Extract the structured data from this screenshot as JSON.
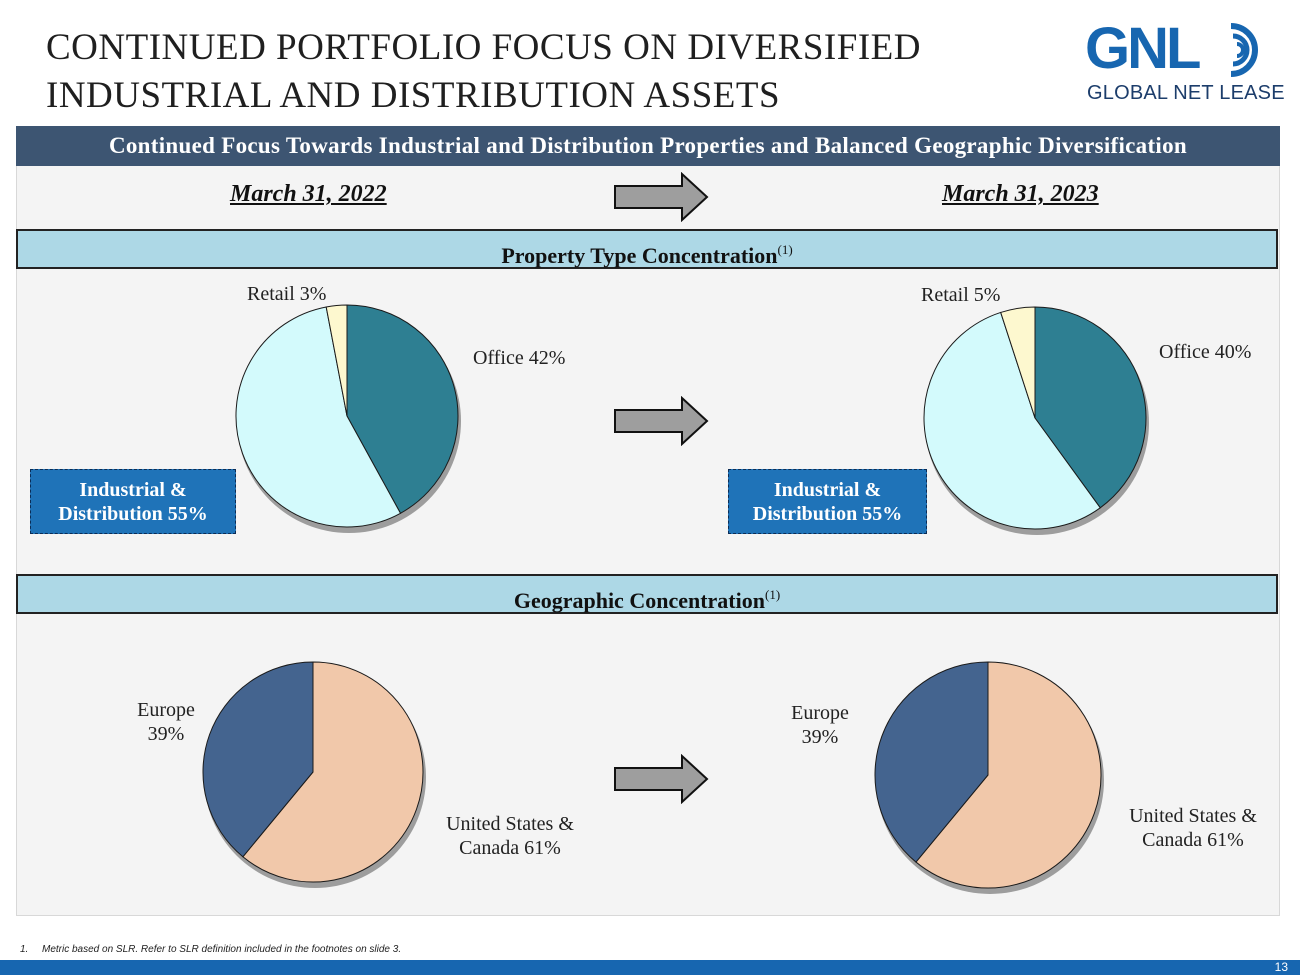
{
  "title": {
    "line1": "CONTINUED PORTFOLIO FOCUS ON DIVERSIFIED",
    "line2": "INDUSTRIAL AND DISTRIBUTION ASSETS"
  },
  "logo": {
    "mark": "GNL",
    "sub": "GLOBAL NET LEASE"
  },
  "banner": "Continued Focus Towards Industrial and Distribution Properties and Balanced Geographic Diversification",
  "dates": {
    "left": "March 31, 2022",
    "right": "March 31, 2023"
  },
  "sections": {
    "property": "Property Type Concentration",
    "geographic": "Geographic Concentration",
    "footnote_marker": "(1)"
  },
  "labels": {
    "retail_2022": "Retail 3%",
    "office_2022": "Office 42%",
    "ind_2022_line1": "Industrial &",
    "ind_2022_line2": "Distribution 55%",
    "retail_2023": "Retail 5%",
    "office_2023": "Office 40%",
    "ind_2023_line1": "Industrial &",
    "ind_2023_line2": "Distribution 55%",
    "europe_2022_line1": "Europe",
    "europe_2022_line2": "39%",
    "us_2022_line1": "United States &",
    "us_2022_line2": "Canada 61%",
    "europe_2023_line1": "Europe",
    "europe_2023_line2": "39%",
    "us_2023_line1": "United States &",
    "us_2023_line2": "Canada 61%"
  },
  "colors": {
    "office": "#2e7f92",
    "industrial": "#d3fafc",
    "retail": "#fdf8cf",
    "europe": "#44648f",
    "us_canada": "#f1c8aa",
    "banner": "#3d5572",
    "section_bar": "#add8e6",
    "callout": "#1f73b8",
    "arrow": "#9e9e9e"
  },
  "chart_data": [
    {
      "type": "pie",
      "id": "property-2022",
      "categories": [
        "Office",
        "Industrial & Distribution",
        "Retail"
      ],
      "values": [
        42,
        55,
        3
      ]
    },
    {
      "type": "pie",
      "id": "property-2023",
      "categories": [
        "Office",
        "Industrial & Distribution",
        "Retail"
      ],
      "values": [
        40,
        55,
        5
      ]
    },
    {
      "type": "pie",
      "id": "geographic-2022",
      "categories": [
        "United States & Canada",
        "Europe"
      ],
      "values": [
        61,
        39
      ]
    },
    {
      "type": "pie",
      "id": "geographic-2023",
      "categories": [
        "United States & Canada",
        "Europe"
      ],
      "values": [
        61,
        39
      ]
    }
  ],
  "footnote": {
    "number": "1.",
    "text": "Metric based on SLR. Refer to SLR definition included in the footnotes on slide 3."
  },
  "page_number": "13"
}
